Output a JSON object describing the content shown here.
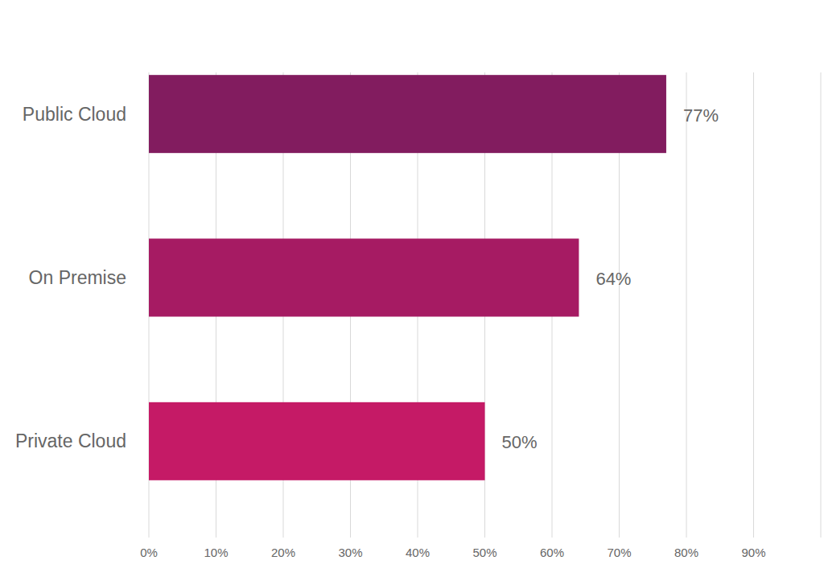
{
  "chart_data": {
    "type": "bar",
    "orientation": "horizontal",
    "categories": [
      "Public Cloud",
      "On Premise",
      "Private Cloud"
    ],
    "values": [
      77,
      64,
      50
    ],
    "value_labels": [
      "77%",
      "64%",
      "50%"
    ],
    "colors": [
      "#821c5f",
      "#a61b63",
      "#c51a66"
    ],
    "xlim": [
      0,
      100
    ],
    "xticks": [
      {
        "value": 0,
        "label": "0%"
      },
      {
        "value": 10,
        "label": "10%"
      },
      {
        "value": 20,
        "label": "20%"
      },
      {
        "value": 30,
        "label": "30%"
      },
      {
        "value": 40,
        "label": "40%"
      },
      {
        "value": 50,
        "label": "50%"
      },
      {
        "value": 60,
        "label": "60%"
      },
      {
        "value": 70,
        "label": "70%"
      },
      {
        "value": 80,
        "label": "80%"
      },
      {
        "value": 90,
        "label": "90%"
      }
    ],
    "grid": true,
    "data_labels": true
  }
}
